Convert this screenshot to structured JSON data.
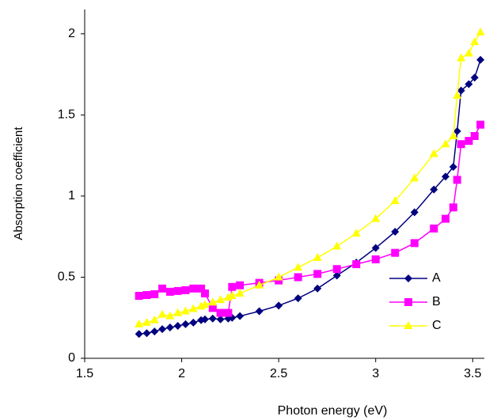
{
  "chart_data": {
    "type": "line",
    "x_label": "Photon energy (eV)",
    "y_label": "Absorption coefficient",
    "x": [
      1.78,
      1.82,
      1.86,
      1.9,
      1.94,
      1.98,
      2.02,
      2.06,
      2.1,
      2.12,
      2.16,
      2.2,
      2.24,
      2.26,
      2.3,
      2.4,
      2.5,
      2.6,
      2.7,
      2.8,
      2.9,
      3.0,
      3.1,
      3.2,
      3.3,
      3.36,
      3.4,
      3.42,
      3.44,
      3.48,
      3.51,
      3.54
    ],
    "series": [
      {
        "name": "A",
        "color": "#000080",
        "marker": "diamond",
        "values": [
          0.15,
          0.155,
          0.165,
          0.18,
          0.19,
          0.2,
          0.21,
          0.22,
          0.235,
          0.24,
          0.245,
          0.24,
          0.245,
          0.25,
          0.26,
          0.29,
          0.325,
          0.37,
          0.43,
          0.51,
          0.59,
          0.68,
          0.78,
          0.9,
          1.04,
          1.12,
          1.18,
          1.4,
          1.65,
          1.69,
          1.73,
          1.84
        ]
      },
      {
        "name": "B",
        "color": "#ff00ff",
        "marker": "square",
        "values": [
          0.385,
          0.39,
          0.395,
          0.43,
          0.41,
          0.415,
          0.42,
          0.43,
          0.43,
          0.4,
          0.31,
          0.28,
          0.28,
          0.44,
          0.45,
          0.465,
          0.48,
          0.5,
          0.52,
          0.55,
          0.58,
          0.61,
          0.65,
          0.71,
          0.8,
          0.86,
          0.93,
          1.1,
          1.32,
          1.34,
          1.37,
          1.44
        ]
      },
      {
        "name": "C",
        "color": "#ffff00",
        "marker": "triangle",
        "values": [
          0.21,
          0.22,
          0.235,
          0.27,
          0.26,
          0.28,
          0.29,
          0.305,
          0.32,
          0.33,
          0.345,
          0.36,
          0.375,
          0.385,
          0.4,
          0.45,
          0.5,
          0.56,
          0.62,
          0.69,
          0.77,
          0.86,
          0.97,
          1.11,
          1.26,
          1.32,
          1.37,
          1.62,
          1.85,
          1.88,
          1.95,
          2.01
        ]
      }
    ],
    "xlim": [
      1.5,
      3.56
    ],
    "ylim": [
      0,
      2.15
    ],
    "xticks": [
      1.5,
      2,
      2.5,
      3,
      3.5
    ],
    "yticks": [
      0,
      0.5,
      1,
      1.5,
      2
    ],
    "grid": false,
    "legend": "lower right"
  }
}
